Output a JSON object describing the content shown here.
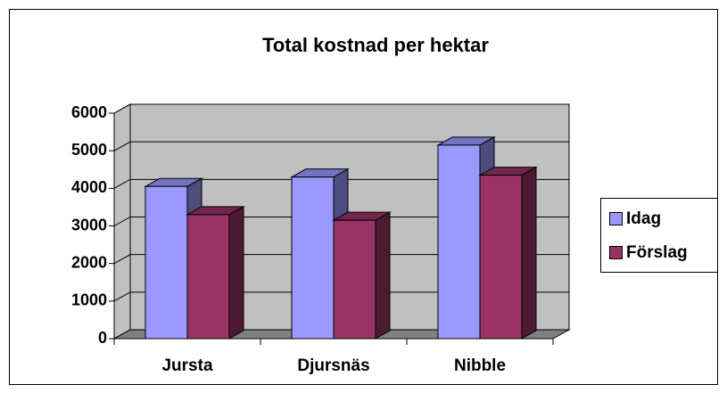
{
  "chart_data": {
    "type": "bar3d",
    "title": "Total kostnad per hektar",
    "categories": [
      "Jursta",
      "Djursnäs",
      "Nibble"
    ],
    "series": [
      {
        "name": "Idag",
        "color": "#9999ff",
        "values": [
          4050,
          4300,
          5150
        ]
      },
      {
        "name": "Förslag",
        "color": "#993366",
        "values": [
          3300,
          3150,
          4350
        ]
      }
    ],
    "ylim": [
      0,
      6000
    ],
    "yticks": [
      0,
      1000,
      2000,
      3000,
      4000,
      5000,
      6000
    ],
    "grid": true,
    "legend": "right"
  }
}
